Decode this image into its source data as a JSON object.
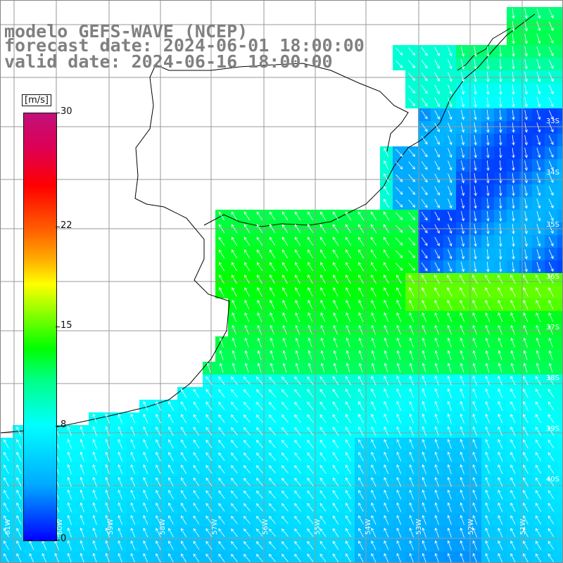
{
  "title": {
    "line1": "modelo GEFS-WAVE (NCEP)",
    "line2": "forecast date: 2024-06-01 18:00:00",
    "line3": "valid date: 2024-06-16 18:00:00"
  },
  "colorbar": {
    "unit": "[m/s]",
    "min": 0,
    "max": 30,
    "ticks": [
      "30",
      "22",
      "15",
      "8",
      "0"
    ],
    "colors": [
      "#0000ff",
      "#00aaff",
      "#00ffff",
      "#00ff80",
      "#00ff00",
      "#aaff00",
      "#ffff00",
      "#ff6600",
      "#ff0000",
      "#c0117a"
    ]
  },
  "map": {
    "lat_labels": [
      "33S",
      "34S",
      "35S",
      "36S",
      "37S",
      "38S",
      "39S",
      "40S"
    ],
    "lon_labels": [
      "61W",
      "60W",
      "59W",
      "58W",
      "57W",
      "56W",
      "55W",
      "54W",
      "53W",
      "52W",
      "51W"
    ],
    "land_color": "#ffffff",
    "grid_color": "#999999",
    "coast_color": "#000000",
    "arrow_color": "#ffffff"
  }
}
